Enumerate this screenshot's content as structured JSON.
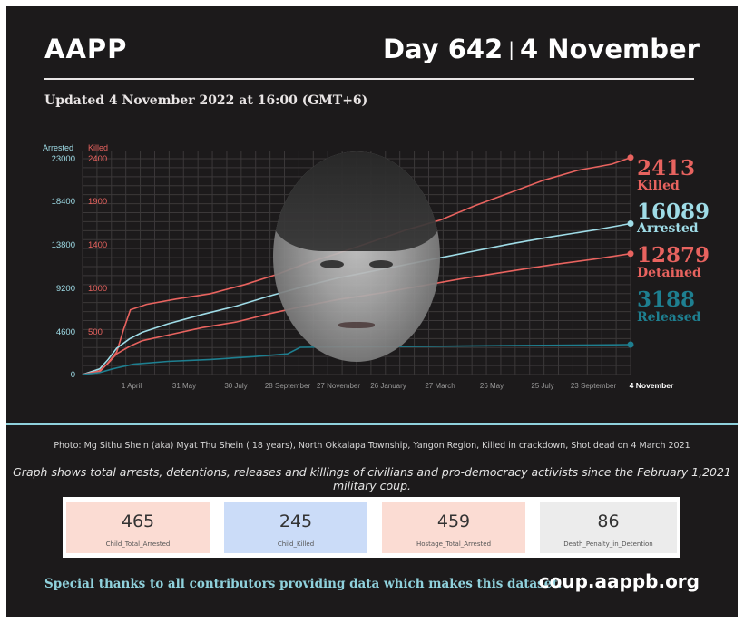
{
  "header": {
    "org": "AAPP",
    "day": "Day 642",
    "separator": "|",
    "date": "4 November",
    "updated": "Updated 4 November 2022 at 16:00 (GMT+6)"
  },
  "colors": {
    "killed": "#e8635f",
    "arrested": "#9fdce7",
    "detained": "#e8635f",
    "released": "#1e7f90",
    "background": "#1c1a1b"
  },
  "chart_data": {
    "type": "line",
    "axis_titles": {
      "left": "Arrested",
      "right": "Killed"
    },
    "left_axis": {
      "ticks": [
        "23000",
        "18400",
        "13800",
        "9200",
        "4600",
        "0"
      ],
      "range": [
        0,
        23000
      ]
    },
    "right_axis": {
      "ticks": [
        "2400",
        "1900",
        "1400",
        "1000",
        "500"
      ],
      "range": [
        0,
        2400
      ]
    },
    "x_ticks": [
      "1 April",
      "31 May",
      "30 July",
      "28 September",
      "27 November",
      "26 January",
      "27 March",
      "26 May",
      "25 July",
      "23 September",
      "4 November"
    ],
    "x_range": [
      0,
      642
    ],
    "grid": true,
    "series": [
      {
        "name": "Killed",
        "end_value": "2413",
        "axis": "right",
        "points": [
          [
            0,
            0
          ],
          [
            20,
            30
          ],
          [
            28,
            110
          ],
          [
            40,
            250
          ],
          [
            48,
            500
          ],
          [
            56,
            720
          ],
          [
            75,
            780
          ],
          [
            110,
            840
          ],
          [
            150,
            900
          ],
          [
            190,
            1000
          ],
          [
            230,
            1120
          ],
          [
            260,
            1230
          ],
          [
            300,
            1350
          ],
          [
            340,
            1480
          ],
          [
            380,
            1610
          ],
          [
            420,
            1720
          ],
          [
            460,
            1880
          ],
          [
            500,
            2020
          ],
          [
            540,
            2160
          ],
          [
            580,
            2270
          ],
          [
            620,
            2340
          ],
          [
            642,
            2413
          ]
        ]
      },
      {
        "name": "Arrested",
        "end_value": "16089",
        "axis": "left",
        "points": [
          [
            0,
            0
          ],
          [
            20,
            600
          ],
          [
            30,
            1600
          ],
          [
            40,
            2800
          ],
          [
            55,
            3800
          ],
          [
            70,
            4500
          ],
          [
            100,
            5400
          ],
          [
            140,
            6400
          ],
          [
            180,
            7300
          ],
          [
            220,
            8400
          ],
          [
            260,
            9400
          ],
          [
            300,
            10300
          ],
          [
            350,
            11200
          ],
          [
            400,
            12100
          ],
          [
            450,
            13000
          ],
          [
            500,
            13900
          ],
          [
            550,
            14700
          ],
          [
            600,
            15400
          ],
          [
            642,
            16089
          ]
        ]
      },
      {
        "name": "Detained",
        "end_value": "12879",
        "axis": "left",
        "points": [
          [
            0,
            0
          ],
          [
            20,
            400
          ],
          [
            30,
            1200
          ],
          [
            40,
            2200
          ],
          [
            55,
            3000
          ],
          [
            70,
            3600
          ],
          [
            100,
            4200
          ],
          [
            140,
            5000
          ],
          [
            180,
            5600
          ],
          [
            220,
            6500
          ],
          [
            260,
            7300
          ],
          [
            300,
            8000
          ],
          [
            350,
            8700
          ],
          [
            400,
            9500
          ],
          [
            450,
            10300
          ],
          [
            500,
            11000
          ],
          [
            550,
            11700
          ],
          [
            600,
            12300
          ],
          [
            642,
            12879
          ]
        ]
      },
      {
        "name": "Released",
        "end_value": "3188",
        "axis": "left",
        "points": [
          [
            0,
            0
          ],
          [
            20,
            200
          ],
          [
            35,
            600
          ],
          [
            60,
            1100
          ],
          [
            100,
            1400
          ],
          [
            150,
            1600
          ],
          [
            200,
            1900
          ],
          [
            240,
            2200
          ],
          [
            255,
            2900
          ],
          [
            300,
            2950
          ],
          [
            400,
            3000
          ],
          [
            500,
            3080
          ],
          [
            600,
            3150
          ],
          [
            642,
            3188
          ]
        ]
      }
    ]
  },
  "photo_credit": "Photo: Mg Sithu Shein (aka) Myat Thu Shein ( 18 years), North Okkalapa Township, Yangon Region, Killed in crackdown, Shot dead on 4 March 2021",
  "graph_description": "Graph shows total arrests, detentions, releases and killings of civilians and pro-democracy activists since the February 1,2021 military coup.",
  "stats": [
    {
      "value": "465",
      "label": "Child_Total_Arrested",
      "bg": "#fbdcd3"
    },
    {
      "value": "245",
      "label": "Child_Killed",
      "bg": "#cbdcf8"
    },
    {
      "value": "459",
      "label": "Hostage_Total_Arrested",
      "bg": "#fbdcd3"
    },
    {
      "value": "86",
      "label": "Death_Penalty_in_Detention",
      "bg": "#ececec"
    }
  ],
  "footer": {
    "thanks": "Special thanks to all contributors providing data which makes this dataset.",
    "site": "coup.aappb.org"
  }
}
